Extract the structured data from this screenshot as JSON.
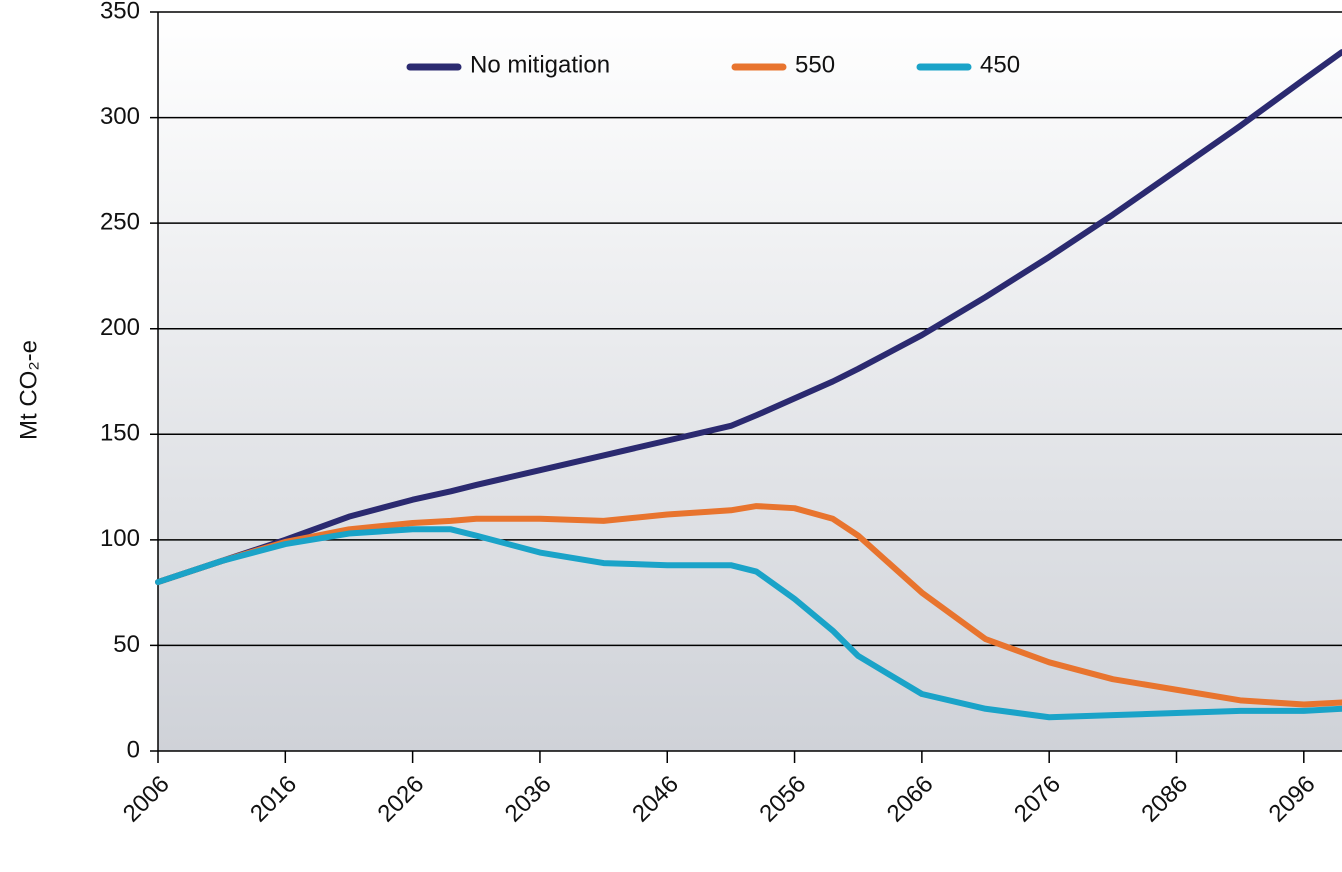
{
  "chart_data": {
    "type": "line",
    "y_label": "Mt CO₂-e",
    "x": [
      2006,
      2011,
      2016,
      2021,
      2026,
      2029,
      2031,
      2036,
      2041,
      2046,
      2051,
      2053,
      2056,
      2059,
      2061,
      2066,
      2071,
      2076,
      2081,
      2086,
      2091,
      2096,
      2099
    ],
    "series": [
      {
        "name": "No mitigation",
        "color": "#2b2a70",
        "values": [
          80,
          90,
          100,
          111,
          119,
          123,
          126,
          133,
          140,
          147,
          154,
          159,
          167,
          175,
          181,
          197,
          215,
          234,
          254,
          275,
          296,
          318,
          331
        ]
      },
      {
        "name": "550",
        "color": "#e8742e",
        "values": [
          80,
          90,
          99,
          105,
          108,
          109,
          110,
          110,
          109,
          112,
          114,
          116,
          115,
          110,
          102,
          75,
          53,
          42,
          34,
          29,
          24,
          22,
          23
        ]
      },
      {
        "name": "450",
        "color": "#1aa3c8",
        "values": [
          80,
          90,
          98,
          103,
          105,
          105,
          102,
          94,
          89,
          88,
          88,
          85,
          72,
          57,
          45,
          27,
          20,
          16,
          17,
          18,
          19,
          19,
          20
        ]
      }
    ],
    "xlim": [
      2006,
      2099
    ],
    "xticks": [
      2006,
      2016,
      2026,
      2036,
      2046,
      2056,
      2066,
      2076,
      2086,
      2096
    ],
    "ylim": [
      0,
      350
    ],
    "yticks": [
      0,
      50,
      100,
      150,
      200,
      250,
      300,
      350
    ],
    "grid": true,
    "legend": "top"
  }
}
